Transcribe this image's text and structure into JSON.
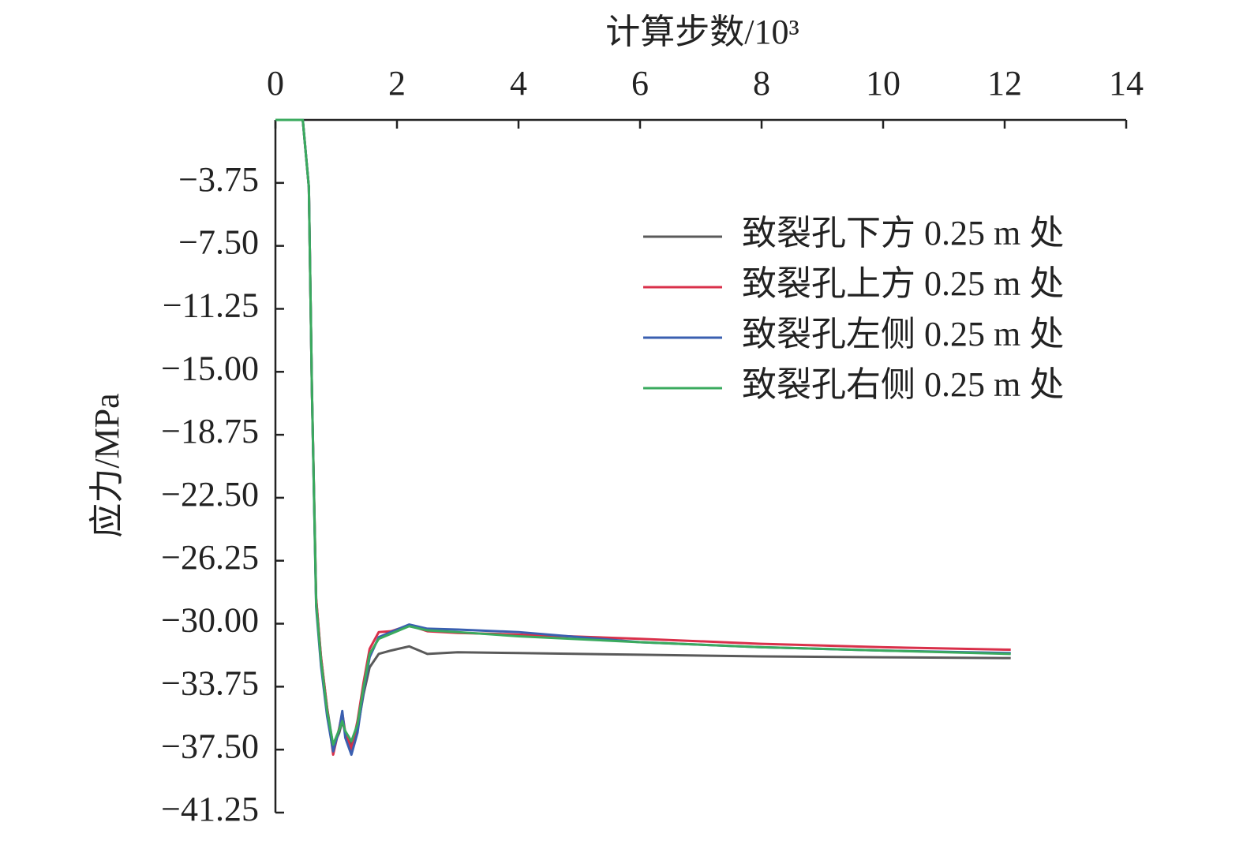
{
  "chart_data": {
    "type": "line",
    "title": "计算步数/10³",
    "y_label": "应力/MPa",
    "x": [
      0,
      0.45,
      0.55,
      0.6,
      0.67,
      0.75,
      0.85,
      0.95,
      1.05,
      1.1,
      1.15,
      1.25,
      1.35,
      1.45,
      1.55,
      1.7,
      1.9,
      2.2,
      2.5,
      3,
      4,
      6,
      8,
      10,
      12.1
    ],
    "series": [
      {
        "name": "致裂孔下方 0.25 m 处",
        "color": "#5a5a5a",
        "values": [
          0,
          0,
          -4,
          -16,
          -28.5,
          -32,
          -35,
          -37.3,
          -36.5,
          -35.8,
          -36.5,
          -37.2,
          -36.3,
          -34.2,
          -32.6,
          -31.8,
          -31.6,
          -31.35,
          -31.8,
          -31.7,
          -31.75,
          -31.85,
          -31.95,
          -32.0,
          -32.05
        ]
      },
      {
        "name": "致裂孔上方 0.25 m 处",
        "color": "#d9304a",
        "values": [
          0,
          0,
          -4,
          -16,
          -28.5,
          -32,
          -35,
          -37.8,
          -36.2,
          -35.3,
          -36.5,
          -37.5,
          -35.8,
          -33.5,
          -31.5,
          -30.5,
          -30.45,
          -30.1,
          -30.45,
          -30.55,
          -30.65,
          -30.9,
          -31.2,
          -31.4,
          -31.55
        ]
      },
      {
        "name": "致裂孔左侧 0.25 m 处",
        "color": "#3a5fb0",
        "values": [
          0,
          0,
          -4,
          -16,
          -29,
          -32.5,
          -35.5,
          -37.6,
          -36.3,
          -35.2,
          -36.8,
          -37.8,
          -36.5,
          -34,
          -32,
          -30.8,
          -30.5,
          -30.05,
          -30.3,
          -30.35,
          -30.5,
          -31.1,
          -31.4,
          -31.6,
          -31.75
        ]
      },
      {
        "name": "致裂孔右侧 0.25 m 处",
        "color": "#3aaa5e",
        "values": [
          0,
          0,
          -4,
          -16,
          -28.8,
          -32.2,
          -35.2,
          -37.2,
          -36.3,
          -35.8,
          -36.4,
          -37.0,
          -36,
          -33.8,
          -31.8,
          -30.9,
          -30.6,
          -30.15,
          -30.4,
          -30.5,
          -30.75,
          -31.1,
          -31.4,
          -31.6,
          -31.8
        ]
      }
    ],
    "xlim": [
      0,
      14
    ],
    "xticks": [
      0,
      2,
      4,
      6,
      8,
      10,
      12,
      14
    ],
    "ylim": [
      -41.25,
      0
    ],
    "yticks": [
      {
        "value": -3.75,
        "label": "−3.75"
      },
      {
        "value": -7.5,
        "label": "−7.50"
      },
      {
        "value": -11.25,
        "label": "−11.25"
      },
      {
        "value": -15,
        "label": "−15.00"
      },
      {
        "value": -18.75,
        "label": "−18.75"
      },
      {
        "value": -22.5,
        "label": "−22.50"
      },
      {
        "value": -26.25,
        "label": "−26.25"
      },
      {
        "value": -30,
        "label": "−30.00"
      },
      {
        "value": -33.75,
        "label": "−33.75"
      },
      {
        "value": -37.5,
        "label": "−37.50"
      },
      {
        "value": -41.25,
        "label": "−41.25"
      }
    ],
    "legend": "upper right"
  }
}
